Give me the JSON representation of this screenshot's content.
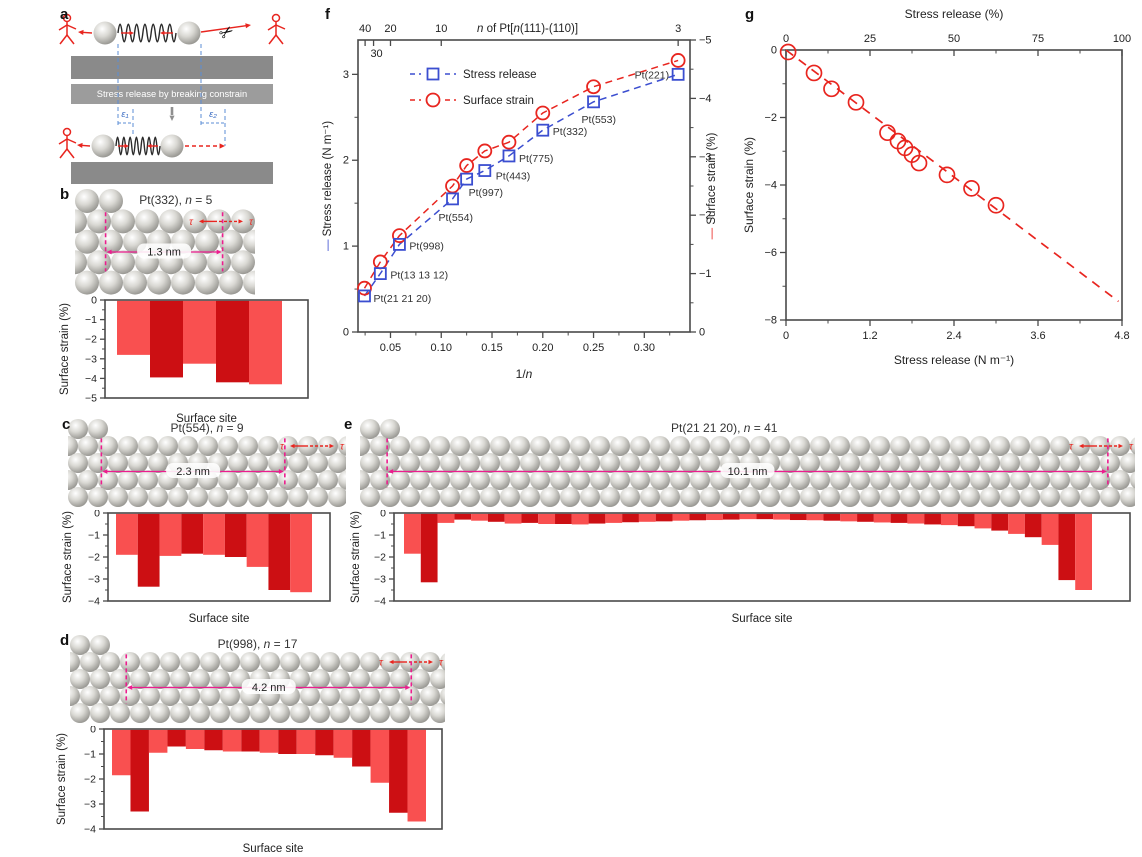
{
  "panels": {
    "a": {
      "label": "a",
      "banner": "Stress release by breaking constrain",
      "epsilon1": "ε₁",
      "epsilon2": "ε₂"
    },
    "b": {
      "label": "b"
    },
    "c": {
      "label": "c"
    },
    "d": {
      "label": "d"
    },
    "e": {
      "label": "e"
    },
    "f": {
      "label": "f"
    },
    "g": {
      "label": "g"
    }
  },
  "colors": {
    "blue": "#3b4ed0",
    "red": "#e8251f",
    "bar_light": "#f95050",
    "bar_dark": "#cc0f13",
    "pink": "#ec1d8e",
    "slab_gray": "#8a8a8a",
    "banner_gray": "#9c9c9c",
    "frame": "#4a4a4a",
    "text": "#222222",
    "label": "#333333"
  },
  "lattices": {
    "b": {
      "title": "Pt(332), n = 5",
      "distance": "1.3 nm",
      "tau": "τ",
      "rows": 4,
      "partial": 2
    },
    "c": {
      "title": "Pt(554), n = 9",
      "distance": "2.3 nm",
      "tau": "τ",
      "rows": 4,
      "partial": 2
    },
    "d": {
      "title": "Pt(998), n = 17",
      "distance": "4.2 nm",
      "tau": "τ",
      "rows": 4,
      "partial": 2
    },
    "e": {
      "title": "Pt(21 21 20), n = 41",
      "distance": "10.1 nm",
      "tau": "τ",
      "rows": 4,
      "partial": 2
    }
  },
  "chart_data": [
    {
      "id": "b",
      "type": "bar",
      "ylabel": "Surface strain (%)",
      "xlabel": "Surface site",
      "ylim": [
        -5,
        0
      ],
      "yticks": [
        0,
        -1,
        -2,
        -3,
        -4,
        -5
      ],
      "values": [
        -2.8,
        -3.95,
        -3.25,
        -4.2,
        -4.3
      ]
    },
    {
      "id": "c",
      "type": "bar",
      "ylabel": "Surface strain (%)",
      "xlabel": "Surface site",
      "ylim": [
        -4,
        0
      ],
      "yticks": [
        0,
        -1,
        -2,
        -3,
        -4
      ],
      "values": [
        -1.9,
        -3.35,
        -1.95,
        -1.85,
        -1.9,
        -2.0,
        -2.45,
        -3.5,
        -3.6
      ]
    },
    {
      "id": "d",
      "type": "bar",
      "ylabel": "Surface strain (%)",
      "xlabel": "Surface site",
      "ylim": [
        -4,
        0
      ],
      "yticks": [
        0,
        -1,
        -2,
        -3,
        -4
      ],
      "values": [
        -1.85,
        -3.3,
        -0.95,
        -0.7,
        -0.8,
        -0.85,
        -0.9,
        -0.9,
        -0.95,
        -1.0,
        -1.0,
        -1.05,
        -1.15,
        -1.5,
        -2.15,
        -3.35,
        -3.7
      ]
    },
    {
      "id": "e",
      "type": "bar",
      "ylabel": "Surface strain (%)",
      "xlabel": "Surface site",
      "ylim": [
        -4,
        0
      ],
      "yticks": [
        0,
        -1,
        -2,
        -3,
        -4
      ],
      "values": [
        -1.85,
        -3.15,
        -0.45,
        -0.3,
        -0.35,
        -0.4,
        -0.48,
        -0.45,
        -0.5,
        -0.5,
        -0.52,
        -0.48,
        -0.45,
        -0.42,
        -0.4,
        -0.38,
        -0.35,
        -0.33,
        -0.32,
        -0.3,
        -0.28,
        -0.28,
        -0.3,
        -0.32,
        -0.33,
        -0.35,
        -0.38,
        -0.4,
        -0.43,
        -0.45,
        -0.48,
        -0.52,
        -0.55,
        -0.6,
        -0.7,
        -0.8,
        -0.95,
        -1.1,
        -1.45,
        -3.05,
        -3.5
      ]
    },
    {
      "id": "f",
      "type": "scatter",
      "top_axis_label": "n of Pt[n(111)-(110)]",
      "xlabel": "1/n",
      "left_ylabel": "Stress release (N m⁻¹)",
      "right_ylabel": "Surface strain (%)",
      "xlim": [
        0.018,
        0.345
      ],
      "xticks": [
        0.05,
        0.1,
        0.15,
        0.2,
        0.25,
        0.3
      ],
      "left_ylim": [
        0,
        3.4
      ],
      "left_yticks": [
        0,
        1,
        2,
        3
      ],
      "right_ylim": [
        0,
        -5
      ],
      "right_yticks": [
        0,
        -1,
        -2,
        -3,
        -4,
        -5
      ],
      "top_ticks": [
        {
          "n": 40
        },
        {
          "n": 30,
          "inside": true
        },
        {
          "n": 20
        },
        {
          "n": 10
        },
        {
          "n": 3
        }
      ],
      "legend": [
        {
          "label": "Stress release",
          "marker": "square"
        },
        {
          "label": "Surface strain",
          "marker": "circle"
        }
      ],
      "points": [
        {
          "label": "Pt(21 21 20)",
          "x": 0.0244,
          "stress": 0.42,
          "strain": -0.75,
          "lx": 9,
          "ly": 6
        },
        {
          "label": "Pt(13 13 12)",
          "x": 0.04,
          "stress": 0.68,
          "strain": -1.2,
          "lx": 10,
          "ly": 5
        },
        {
          "label": "Pt(998)",
          "x": 0.0588,
          "stress": 1.02,
          "strain": -1.65,
          "lx": 10,
          "ly": 5
        },
        {
          "label": "Pt(554)",
          "x": 0.1111,
          "stress": 1.55,
          "strain": -2.5,
          "lx": -14,
          "ly": 22
        },
        {
          "label": "Pt(997)",
          "x": 0.125,
          "stress": 1.78,
          "strain": -2.85,
          "lx": 2,
          "ly": 17
        },
        {
          "label": "Pt(443)",
          "x": 0.1429,
          "stress": 1.88,
          "strain": -3.1,
          "lx": 11,
          "ly": 9
        },
        {
          "label": "Pt(775)",
          "x": 0.1667,
          "stress": 2.05,
          "strain": -3.25,
          "lx": 10,
          "ly": 6
        },
        {
          "label": "Pt(332)",
          "x": 0.2,
          "stress": 2.35,
          "strain": -3.75,
          "lx": 10,
          "ly": 5
        },
        {
          "label": "Pt(553)",
          "x": 0.25,
          "stress": 2.68,
          "strain": -4.2,
          "lx": -12,
          "ly": 21
        },
        {
          "label": "Pt(221)",
          "x": 0.3333,
          "stress": 3.0,
          "strain": -4.65,
          "lx": -9,
          "ly": 4,
          "anchor": "end"
        }
      ]
    },
    {
      "id": "g",
      "type": "scatter",
      "top_axis_label": "Stress release (%)",
      "xlabel": "Stress release (N m⁻¹)",
      "ylabel": "Surface strain (%)",
      "xlim": [
        0,
        4.8
      ],
      "xticks": [
        0,
        1.2,
        2.4,
        3.6,
        4.8
      ],
      "top_ticks": [
        0,
        25,
        50,
        75,
        100
      ],
      "ylim": [
        -8,
        0
      ],
      "yticks": [
        0,
        -2,
        -4,
        -6,
        -8
      ],
      "fit_line": {
        "x1": 0,
        "y1": 0,
        "x2": 4.75,
        "y2": -7.45
      },
      "points": [
        [
          0.03,
          -0.06
        ],
        [
          0.4,
          -0.68
        ],
        [
          0.65,
          -1.15
        ],
        [
          1.0,
          -1.55
        ],
        [
          1.45,
          -2.45
        ],
        [
          1.6,
          -2.7
        ],
        [
          1.7,
          -2.9
        ],
        [
          1.8,
          -3.1
        ],
        [
          1.9,
          -3.35
        ],
        [
          2.3,
          -3.7
        ],
        [
          2.65,
          -4.1
        ],
        [
          3.0,
          -4.6
        ]
      ]
    }
  ]
}
